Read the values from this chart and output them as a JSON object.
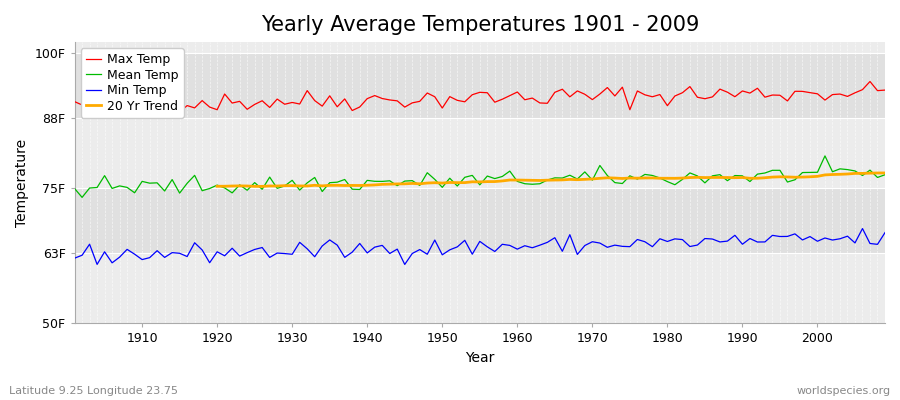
{
  "title": "Yearly Average Temperatures 1901 - 2009",
  "xlabel": "Year",
  "ylabel": "Temperature",
  "lat_lon_label": "Latitude 9.25 Longitude 23.75",
  "credit_label": "worldspecies.org",
  "years_start": 1901,
  "years_end": 2009,
  "yticks": [
    50,
    63,
    75,
    88,
    100
  ],
  "ytick_labels": [
    "50F",
    "63F",
    "75F",
    "88F",
    "100F"
  ],
  "ylim": [
    50,
    102
  ],
  "xlim": [
    1901,
    2009
  ],
  "xticks": [
    1910,
    1920,
    1930,
    1940,
    1950,
    1960,
    1970,
    1980,
    1990,
    2000
  ],
  "max_temp_color": "#ff0000",
  "mean_temp_color": "#00bb00",
  "min_temp_color": "#0000ff",
  "trend_color": "#ffaa00",
  "background_color": "#ffffff",
  "plot_bg_light": "#ececec",
  "plot_bg_dark": "#e0e0e0",
  "grid_color": "#ffffff",
  "title_fontsize": 15,
  "axis_label_fontsize": 10,
  "tick_label_fontsize": 9,
  "legend_fontsize": 9,
  "max_base": 90.5,
  "mean_base": 75.0,
  "min_base": 62.5,
  "max_warming": 0.022,
  "mean_warming": 0.025,
  "min_warming": 0.03,
  "seed": 42
}
